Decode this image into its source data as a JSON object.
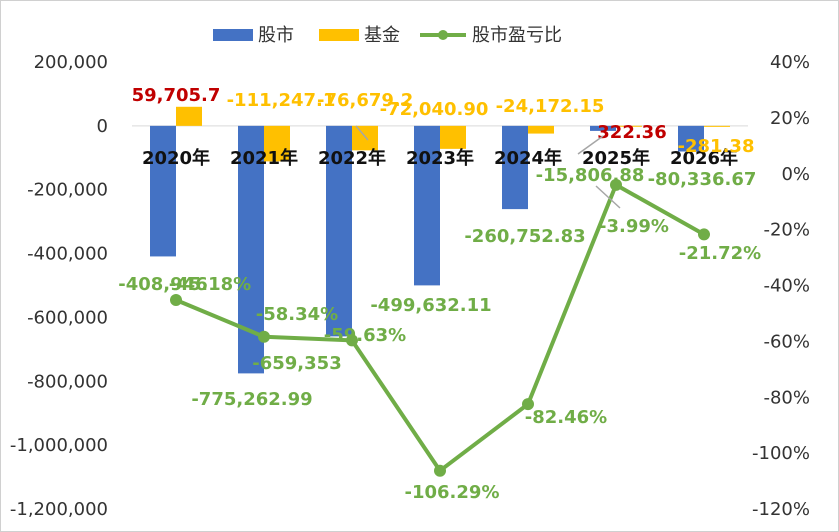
{
  "chart_data": {
    "type": "bar",
    "categories": [
      "2020年",
      "2021年",
      "2022年",
      "2023年",
      "2024年",
      "2025年",
      "2026年"
    ],
    "series": [
      {
        "name": "股市",
        "axis": "left",
        "type": "bar",
        "values": [
          -408946,
          -775262.99,
          -659353,
          -499632.11,
          -260752.83,
          -15806.88,
          -80336.67
        ],
        "labels": [
          "-408,946",
          "-775,262.99",
          "-659,353",
          "-499,632.11",
          "-260,752.83",
          "-15,806.88",
          "-80,336.67"
        ]
      },
      {
        "name": "基金",
        "axis": "left",
        "type": "bar",
        "values": [
          59705.7,
          -111247.1,
          -76679.2,
          -72040.9,
          -24172.15,
          322.36,
          -281.38
        ],
        "labels": [
          "59,705.7",
          "-111,247.1",
          "-76,679.2",
          "-72,040.90",
          "-24,172.15",
          "322.36",
          "-281.38"
        ]
      },
      {
        "name": "股市盈亏比",
        "axis": "right",
        "type": "line",
        "values": [
          -45.18,
          -58.34,
          -59.63,
          -106.29,
          -82.46,
          -3.99,
          -21.72
        ],
        "labels": [
          "-45.18%",
          "-58.34%",
          "-59.63%",
          "-106.29%",
          "-82.46%",
          "-3.99%",
          "-21.72%"
        ]
      }
    ],
    "y_left": {
      "ylim": [
        -1200000,
        200000
      ],
      "ticks": [
        200000,
        0,
        -200000,
        -400000,
        -600000,
        -800000,
        -1000000,
        -1200000
      ],
      "tick_labels": [
        "200,000",
        "0",
        "-200,000",
        "-400,000",
        "-600,000",
        "-800,000",
        "-1,000,000",
        "-1,200,000"
      ]
    },
    "y_right": {
      "ylim": [
        -120,
        40
      ],
      "ticks": [
        40,
        20,
        0,
        -20,
        -40,
        -60,
        -80,
        -100,
        -120
      ],
      "tick_labels": [
        "40%",
        "20%",
        "0%",
        "-20%",
        "-40%",
        "-60%",
        "-80%",
        "-100%",
        "-120%"
      ]
    },
    "legend_position": "top",
    "grid": false,
    "colors": {
      "stock": "#4472C4",
      "fund": "#FFC000",
      "ratio": "#70AD47",
      "positive_label": "#C00000"
    }
  }
}
